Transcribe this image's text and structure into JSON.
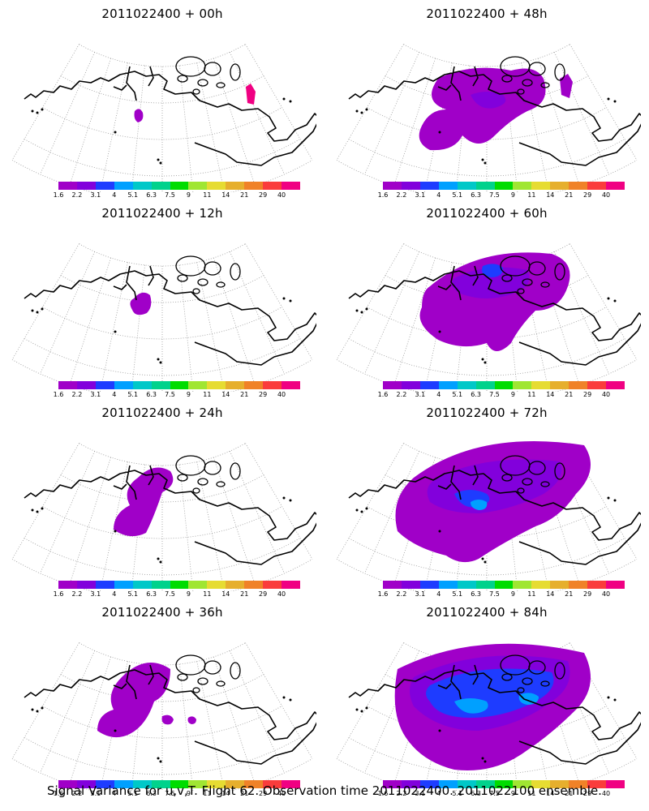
{
  "panels": [
    {
      "title": "2011022400 + 00h"
    },
    {
      "title": "2011022400 + 48h"
    },
    {
      "title": "2011022400 + 12h"
    },
    {
      "title": "2011022400 + 60h"
    },
    {
      "title": "2011022400 + 24h"
    },
    {
      "title": "2011022400 + 72h"
    },
    {
      "title": "2011022400 + 36h"
    },
    {
      "title": "2011022400 + 84h"
    }
  ],
  "colorbar": {
    "colors": [
      "#a000c8",
      "#8200dc",
      "#1e3cff",
      "#00a0ff",
      "#00c8c8",
      "#00d28c",
      "#00dc00",
      "#a0e632",
      "#e6dc32",
      "#e6af2d",
      "#f08228",
      "#fa3c3c",
      "#f00082"
    ],
    "labels": [
      "1.6",
      "2.2",
      "3.1",
      "4",
      "5.1",
      "6.3",
      "7.5",
      "9",
      "11",
      "14",
      "21",
      "29",
      "40"
    ]
  },
  "footer": "Signal Variance for u,v,T. Flight 62. Observation time 2011022400. 2011022100 ensemble."
}
